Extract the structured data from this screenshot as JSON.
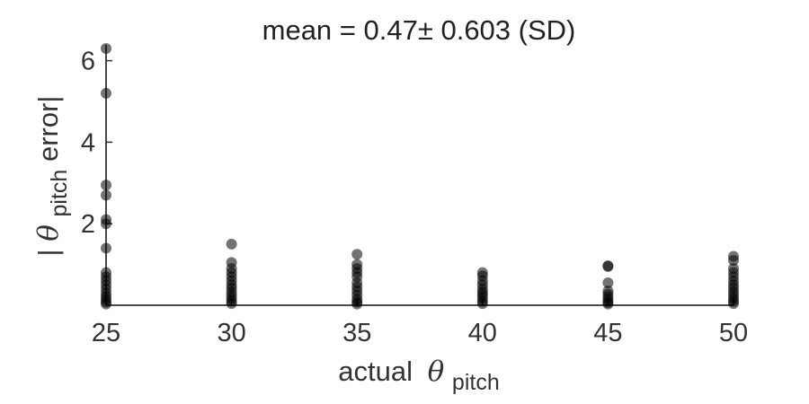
{
  "chart_data": {
    "type": "scatter",
    "title": "mean = 0.47± 0.603 (SD)",
    "xlabel": "actual",
    "xlabel_symbol": "θ",
    "xlabel_subscript": "pitch",
    "ylabel_prefix": "|",
    "ylabel_symbol": "θ",
    "ylabel_subscript": "pitch",
    "ylabel_suffix": " error|",
    "xlim": [
      25,
      50
    ],
    "ylim": [
      0,
      6.3
    ],
    "xticks": [
      25,
      30,
      35,
      40,
      45,
      50
    ],
    "yticks": [
      2,
      4,
      6
    ],
    "grid": false,
    "legend": "none",
    "marker_color": "#000000",
    "series": [
      {
        "points": [
          [
            25,
            6.3
          ],
          [
            25,
            5.2
          ],
          [
            25,
            2.95
          ],
          [
            25,
            2.7
          ],
          [
            25,
            2.1
          ],
          [
            25,
            2.0
          ],
          [
            25,
            1.4
          ],
          [
            25,
            0.8
          ],
          [
            25,
            0.7
          ],
          [
            25,
            0.6
          ],
          [
            25,
            0.5
          ],
          [
            25,
            0.4
          ],
          [
            25,
            0.3
          ],
          [
            25,
            0.22
          ],
          [
            25,
            0.15
          ],
          [
            25,
            0.08
          ],
          [
            25,
            0.03
          ],
          [
            30,
            1.5
          ],
          [
            30,
            1.05
          ],
          [
            30,
            0.9
          ],
          [
            30,
            0.8
          ],
          [
            30,
            0.7
          ],
          [
            30,
            0.6
          ],
          [
            30,
            0.5
          ],
          [
            30,
            0.42
          ],
          [
            30,
            0.33
          ],
          [
            30,
            0.25
          ],
          [
            30,
            0.17
          ],
          [
            30,
            0.1
          ],
          [
            30,
            0.04
          ],
          [
            35,
            1.25
          ],
          [
            35,
            1.0
          ],
          [
            35,
            0.9
          ],
          [
            35,
            0.8
          ],
          [
            35,
            0.7
          ],
          [
            35,
            0.55
          ],
          [
            35,
            0.45
          ],
          [
            35,
            0.35
          ],
          [
            35,
            0.25
          ],
          [
            35,
            0.15
          ],
          [
            35,
            0.08
          ],
          [
            35,
            0.03
          ],
          [
            40,
            0.8
          ],
          [
            40,
            0.72
          ],
          [
            40,
            0.6
          ],
          [
            40,
            0.5
          ],
          [
            40,
            0.4
          ],
          [
            40,
            0.32
          ],
          [
            40,
            0.25
          ],
          [
            40,
            0.18
          ],
          [
            40,
            0.1
          ],
          [
            40,
            0.04
          ],
          [
            45,
            0.97
          ],
          [
            45,
            0.95
          ],
          [
            45,
            0.55
          ],
          [
            45,
            0.35
          ],
          [
            45,
            0.27
          ],
          [
            45,
            0.2
          ],
          [
            45,
            0.13
          ],
          [
            45,
            0.07
          ],
          [
            45,
            0.03
          ],
          [
            50,
            1.2
          ],
          [
            50,
            1.1
          ],
          [
            50,
            0.9
          ],
          [
            50,
            0.8
          ],
          [
            50,
            0.7
          ],
          [
            50,
            0.6
          ],
          [
            50,
            0.5
          ],
          [
            50,
            0.42
          ],
          [
            50,
            0.33
          ],
          [
            50,
            0.25
          ],
          [
            50,
            0.17
          ],
          [
            50,
            0.1
          ],
          [
            50,
            0.04
          ]
        ]
      }
    ]
  }
}
